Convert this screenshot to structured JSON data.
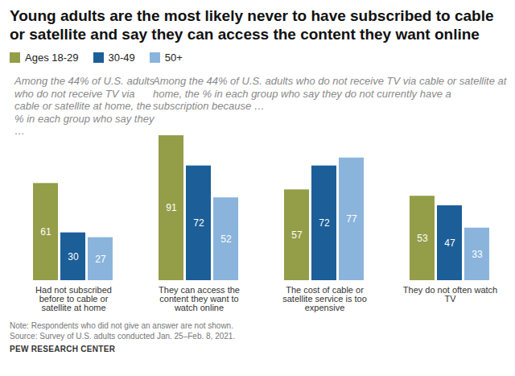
{
  "chart_data": {
    "type": "bar",
    "title": "Young adults are the most likely never to have subscribed to cable or satellite and say they can access the content they want online",
    "annotations": [
      "Among the 44% of U.S. adults who do not receive TV via cable or satellite at home, the % in each group who say they …",
      "Among the 44% of U.S. adults who do not receive TV via cable or satellite at home, the % in each group who say they do not currently have a subscription because …"
    ],
    "categories": [
      "Had not subscribed before to cable or satellite at home",
      "They can access the content they want to watch online",
      "The cost of cable or satellite service is too expensive",
      "They do not often watch TV"
    ],
    "series": [
      {
        "name": "Ages 18-29",
        "color": "#949d48",
        "values": [
          61,
          91,
          57,
          53
        ]
      },
      {
        "name": "30-49",
        "color": "#1b5e98",
        "values": [
          30,
          72,
          72,
          47
        ]
      },
      {
        "name": "50+",
        "color": "#8ab4dc",
        "values": [
          27,
          52,
          77,
          33
        ]
      }
    ],
    "data_labels": true,
    "tick_labels": "x",
    "grid": false,
    "legend": "top-left",
    "note": "Note: Respondents who did not give an answer are not shown.",
    "source": "Source: Survey of U.S. adults conducted Jan. 25–Feb. 8, 2021.",
    "credit": "PEW RESEARCH CENTER"
  }
}
